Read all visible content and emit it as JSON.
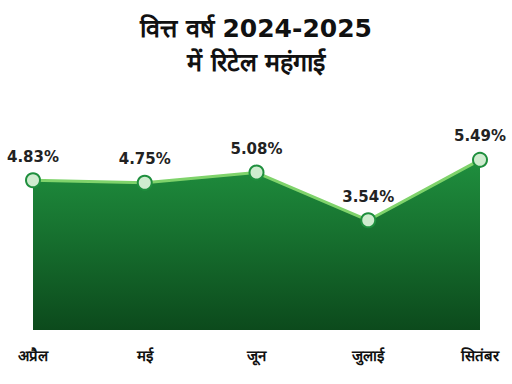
{
  "chart_data": {
    "type": "line",
    "title": "वित्त वर्ष 2024-2025\nमें रिटेल महंगाई",
    "categories": [
      "अप्रैल",
      "मई",
      "जून",
      "जुलाई",
      "सितंबर"
    ],
    "values": [
      4.83,
      4.75,
      5.08,
      3.54,
      5.49
    ],
    "value_labels": [
      "4.83%",
      "4.75%",
      "5.08%",
      "3.54%",
      "5.49%"
    ],
    "color": "#1f8f3e",
    "marker": "circle",
    "ylim": [
      0,
      7
    ],
    "grid": false,
    "data_labels": true,
    "tick_labels": "x"
  }
}
